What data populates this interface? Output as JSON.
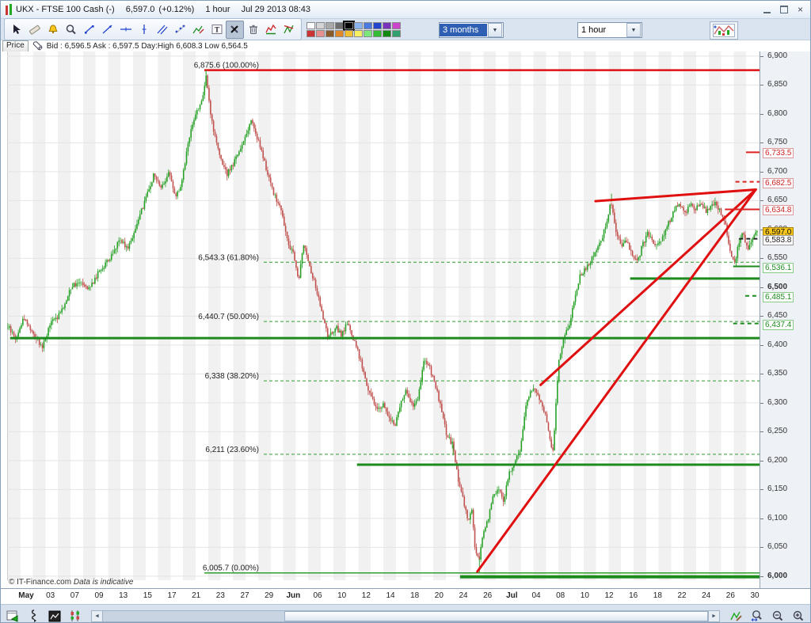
{
  "window": {
    "title": "UKX - FTSE 100 Cash (-)",
    "price": "6,597.0",
    "change": "(+0.12%)",
    "timeframe": "1 hour",
    "datetime": "Jul 29 2013 08:43",
    "controls": [
      "minimize-icon",
      "restore-icon",
      "close-icon"
    ]
  },
  "toolbar": {
    "tools": [
      "pointer",
      "ruler",
      "alarm",
      "zoom",
      "segment",
      "trendline",
      "horizontal-line",
      "vertical-line",
      "parallel-lines",
      "scatter-line",
      "chart-draw",
      "text",
      "tools",
      "trash",
      "pattern-flag",
      "pattern-wedge"
    ],
    "selected_tool": "tools",
    "palette_row1": [
      "#ffffff",
      "#d4d4d4",
      "#a8a8a8",
      "#6e6e6e",
      "#000000",
      "#8ab4f0",
      "#4a7ae0",
      "#2244cc",
      "#7733bb",
      "#cc44cc"
    ],
    "palette_row2": [
      "#cc3333",
      "#e89090",
      "#8a5a2a",
      "#e08828",
      "#f0c030",
      "#f5f062",
      "#7ce87c",
      "#33bb33",
      "#118811",
      "#33a070"
    ],
    "selected_color": "#000000",
    "range_dropdown": {
      "value": "3 months"
    },
    "interval_dropdown": {
      "value": "1 hour"
    },
    "dropdown_arrow": "▼"
  },
  "pricebar": {
    "tab": "Price",
    "quote": "Bid : 6,596.5 Ask : 6,597.5 Day:High 6,608.3 Low 6,564.5"
  },
  "footer": {
    "copyright": "© IT-Finance.com",
    "note": "Data is indicative"
  },
  "bottombar": {
    "icons_left": [
      "export-chart",
      "pointer-link",
      "mini-chart",
      "candle-mode"
    ],
    "icons_right": [
      "analyze-chart",
      "zoom-drag",
      "zoom-out",
      "zoom-in"
    ],
    "scroll_left": "◄",
    "scroll_right": "►"
  },
  "chart_data": {
    "type": "candlestick",
    "title": "UKX - FTSE 100 Cash, 1 hour, 3 months",
    "current_price": 6597.0,
    "day_high": 6608.3,
    "day_low": 6564.5,
    "y_range": [
      5993,
      6908
    ],
    "y_ticks": [
      6900,
      6850,
      6800,
      6750,
      6700,
      6650,
      6600,
      6550,
      6500,
      6450,
      6400,
      6350,
      6300,
      6250,
      6200,
      6150,
      6100,
      6050,
      6000
    ],
    "bold_y_ticks": [
      6500,
      6000
    ],
    "x_labels": [
      "May",
      "03",
      "07",
      "09",
      "13",
      "15",
      "17",
      "21",
      "23",
      "27",
      "29",
      "Jun",
      "06",
      "10",
      "12",
      "14",
      "18",
      "20",
      "24",
      "26",
      "Jul",
      "04",
      "08",
      "10",
      "12",
      "16",
      "18",
      "22",
      "24",
      "26",
      "30"
    ],
    "bold_x_labels": [
      "May",
      "Jun",
      "Jul"
    ],
    "grid": true,
    "colors": {
      "up": "#26a126",
      "down": "#c0504d",
      "support": "#1d8a1d",
      "trend": "#e01010",
      "fib_green": "#2e9e2e",
      "fib_red": "#e01010",
      "grid": "#e4e4e4"
    },
    "price_path": [
      [
        0.0,
        6432
      ],
      [
        0.011,
        6410
      ],
      [
        0.021,
        6448
      ],
      [
        0.034,
        6420
      ],
      [
        0.046,
        6396
      ],
      [
        0.057,
        6438
      ],
      [
        0.071,
        6455
      ],
      [
        0.084,
        6500
      ],
      [
        0.097,
        6512
      ],
      [
        0.109,
        6498
      ],
      [
        0.123,
        6530
      ],
      [
        0.137,
        6550
      ],
      [
        0.149,
        6585
      ],
      [
        0.16,
        6568
      ],
      [
        0.173,
        6610
      ],
      [
        0.184,
        6655
      ],
      [
        0.195,
        6695
      ],
      [
        0.205,
        6672
      ],
      [
        0.215,
        6700
      ],
      [
        0.223,
        6655
      ],
      [
        0.232,
        6680
      ],
      [
        0.242,
        6760
      ],
      [
        0.252,
        6805
      ],
      [
        0.261,
        6830
      ],
      [
        0.265,
        6868
      ],
      [
        0.269,
        6815
      ],
      [
        0.276,
        6760
      ],
      [
        0.284,
        6720
      ],
      [
        0.292,
        6695
      ],
      [
        0.3,
        6712
      ],
      [
        0.308,
        6732
      ],
      [
        0.317,
        6762
      ],
      [
        0.325,
        6790
      ],
      [
        0.333,
        6758
      ],
      [
        0.34,
        6728
      ],
      [
        0.348,
        6690
      ],
      [
        0.357,
        6655
      ],
      [
        0.364,
        6638
      ],
      [
        0.373,
        6580
      ],
      [
        0.381,
        6558
      ],
      [
        0.388,
        6512
      ],
      [
        0.395,
        6578
      ],
      [
        0.403,
        6535
      ],
      [
        0.412,
        6495
      ],
      [
        0.42,
        6448
      ],
      [
        0.428,
        6410
      ],
      [
        0.437,
        6432
      ],
      [
        0.445,
        6418
      ],
      [
        0.454,
        6440
      ],
      [
        0.461,
        6410
      ],
      [
        0.468,
        6385
      ],
      [
        0.477,
        6342
      ],
      [
        0.485,
        6308
      ],
      [
        0.493,
        6288
      ],
      [
        0.501,
        6298
      ],
      [
        0.508,
        6275
      ],
      [
        0.517,
        6260
      ],
      [
        0.524,
        6300
      ],
      [
        0.532,
        6322
      ],
      [
        0.54,
        6295
      ],
      [
        0.548,
        6310
      ],
      [
        0.556,
        6378
      ],
      [
        0.563,
        6360
      ],
      [
        0.572,
        6322
      ],
      [
        0.579,
        6288
      ],
      [
        0.586,
        6242
      ],
      [
        0.594,
        6228
      ],
      [
        0.601,
        6165
      ],
      [
        0.608,
        6130
      ],
      [
        0.614,
        6095
      ],
      [
        0.619,
        6115
      ],
      [
        0.624,
        6042
      ],
      [
        0.629,
        6030
      ],
      [
        0.635,
        6078
      ],
      [
        0.641,
        6098
      ],
      [
        0.647,
        6135
      ],
      [
        0.655,
        6152
      ],
      [
        0.662,
        6130
      ],
      [
        0.669,
        6180
      ],
      [
        0.677,
        6200
      ],
      [
        0.684,
        6222
      ],
      [
        0.692,
        6300
      ],
      [
        0.699,
        6322
      ],
      [
        0.706,
        6318
      ],
      [
        0.714,
        6295
      ],
      [
        0.721,
        6260
      ],
      [
        0.727,
        6205
      ],
      [
        0.735,
        6368
      ],
      [
        0.741,
        6408
      ],
      [
        0.748,
        6430
      ],
      [
        0.756,
        6475
      ],
      [
        0.763,
        6518
      ],
      [
        0.771,
        6532
      ],
      [
        0.778,
        6545
      ],
      [
        0.785,
        6562
      ],
      [
        0.792,
        6580
      ],
      [
        0.799,
        6612
      ],
      [
        0.805,
        6648
      ],
      [
        0.812,
        6595
      ],
      [
        0.819,
        6572
      ],
      [
        0.826,
        6580
      ],
      [
        0.833,
        6558
      ],
      [
        0.84,
        6545
      ],
      [
        0.847,
        6572
      ],
      [
        0.854,
        6595
      ],
      [
        0.861,
        6580
      ],
      [
        0.868,
        6572
      ],
      [
        0.875,
        6588
      ],
      [
        0.882,
        6612
      ],
      [
        0.889,
        6632
      ],
      [
        0.896,
        6648
      ],
      [
        0.903,
        6628
      ],
      [
        0.911,
        6642
      ],
      [
        0.917,
        6634
      ],
      [
        0.924,
        6648
      ],
      [
        0.932,
        6630
      ],
      [
        0.938,
        6640
      ],
      [
        0.945,
        6648
      ],
      [
        0.952,
        6625
      ],
      [
        0.958,
        6605
      ],
      [
        0.964,
        6560
      ],
      [
        0.971,
        6545
      ],
      [
        0.977,
        6588
      ],
      [
        0.982,
        6592
      ],
      [
        0.987,
        6565
      ],
      [
        1.0,
        6597
      ]
    ],
    "spikes": [
      {
        "t": 0.265,
        "price": 6875.6
      },
      {
        "t": 0.629,
        "price": 6005.7
      },
      {
        "t": 0.805,
        "price": 6662
      },
      {
        "t": 0.594,
        "price": 6209
      }
    ],
    "fibonacci": [
      {
        "price": 6875.6,
        "label": "6,875.6 (100.00%)",
        "style": "solid-red"
      },
      {
        "price": 6543.3,
        "label": "6,543.3 (61.80%)",
        "style": "dashed-green"
      },
      {
        "price": 6440.7,
        "label": "6,440.7 (50.00%)",
        "style": "dashed-green"
      },
      {
        "price": 6338,
        "label": "6,338 (38.20%)",
        "style": "dashed-green"
      },
      {
        "price": 6211,
        "label": "6,211 (23.60%)",
        "style": "dashed-green"
      },
      {
        "price": 6005.7,
        "label": "6,005.7 (0.00%)",
        "style": "solid-green"
      }
    ],
    "support_lines": [
      {
        "price": 6412,
        "x1": 0.004,
        "x2": 1,
        "w": 3
      },
      {
        "price": 6515,
        "x1": 0.828,
        "x2": 1,
        "w": 3
      },
      {
        "price": 6193,
        "x1": 0.465,
        "x2": 1,
        "w": 3
      },
      {
        "price": 5999,
        "x1": 0.602,
        "x2": 1,
        "w": 4
      }
    ],
    "trend_lines": [
      {
        "x1": 0.782,
        "p1": 6649,
        "x2": 0.995,
        "p2": 6669
      },
      {
        "x1": 0.625,
        "p1": 6008,
        "x2": 0.995,
        "p2": 6669
      },
      {
        "x1": 0.709,
        "p1": 6331,
        "x2": 0.995,
        "p2": 6669
      }
    ],
    "edge_markers": [
      {
        "price": 6733.5,
        "x1": 0.982,
        "color": "#dd2222",
        "style": "solid",
        "w": 2
      },
      {
        "price": 6682.5,
        "x1": 0.968,
        "color": "#dd2222",
        "style": "dashed",
        "w": 2
      },
      {
        "price": 6634.8,
        "x1": 0.954,
        "color": "#dd2222",
        "style": "solid",
        "w": 2
      },
      {
        "price": 6583.8,
        "x1": 0.973,
        "color": "#222222",
        "style": "dashed",
        "w": 2
      },
      {
        "price": 6536.1,
        "x1": 0.965,
        "color": "#1d8a1d",
        "style": "solid",
        "w": 2
      },
      {
        "price": 6485.1,
        "x1": 0.981,
        "color": "#1d8a1d",
        "style": "dashed",
        "w": 2
      },
      {
        "price": 6437.4,
        "x1": 0.965,
        "color": "#1d8a1d",
        "style": "dashed",
        "w": 2
      }
    ],
    "axis_price_boxes": [
      {
        "value": "6,733.5",
        "price": 6733.5,
        "type": "red"
      },
      {
        "value": "6,682.5",
        "price": 6682.5,
        "type": "red"
      },
      {
        "value": "6,634.8",
        "price": 6634.8,
        "type": "red"
      },
      {
        "value": "6,597.0",
        "price": 6597.0,
        "type": "current"
      },
      {
        "value": "6,583.8",
        "price": 6583.8,
        "type": "neutral"
      },
      {
        "value": "6,536.1",
        "price": 6536.1,
        "type": "green"
      },
      {
        "value": "6,485.1",
        "price": 6485.1,
        "type": "green"
      },
      {
        "value": "6,437.4",
        "price": 6437.4,
        "type": "green"
      }
    ]
  }
}
